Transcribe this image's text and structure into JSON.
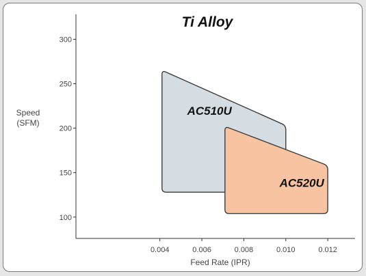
{
  "chart_data": {
    "type": "area",
    "title": "Ti Alloy",
    "xlabel": "Feed Rate (IPR)",
    "ylabel_lines": [
      "Speed",
      "(SFM)"
    ],
    "xlim": [
      0,
      0.0133
    ],
    "ylim": [
      76,
      328
    ],
    "x_ticks": [
      {
        "value": 0.004,
        "label": "0.004"
      },
      {
        "value": 0.006,
        "label": "0.006"
      },
      {
        "value": 0.008,
        "label": "0.008"
      },
      {
        "value": 0.01,
        "label": "0.010"
      },
      {
        "value": 0.012,
        "label": "0.012"
      }
    ],
    "y_ticks": [
      {
        "value": 100,
        "label": "100"
      },
      {
        "value": 150,
        "label": "150"
      },
      {
        "value": 200,
        "label": "200"
      },
      {
        "value": 250,
        "label": "250"
      },
      {
        "value": 300,
        "label": "300"
      }
    ],
    "series": [
      {
        "name": "AC510U",
        "color": "#d6dde2",
        "label_at": [
          0.0053,
          215
        ],
        "points": [
          [
            0.0041,
            265
          ],
          [
            0.01,
            203
          ],
          [
            0.01,
            128
          ],
          [
            0.0041,
            128
          ]
        ]
      },
      {
        "name": "AC520U",
        "color": "#f7c3a0",
        "label_at": [
          0.0097,
          134
        ],
        "points": [
          [
            0.0071,
            202
          ],
          [
            0.012,
            158
          ],
          [
            0.012,
            104
          ],
          [
            0.0071,
            104
          ]
        ]
      }
    ]
  }
}
